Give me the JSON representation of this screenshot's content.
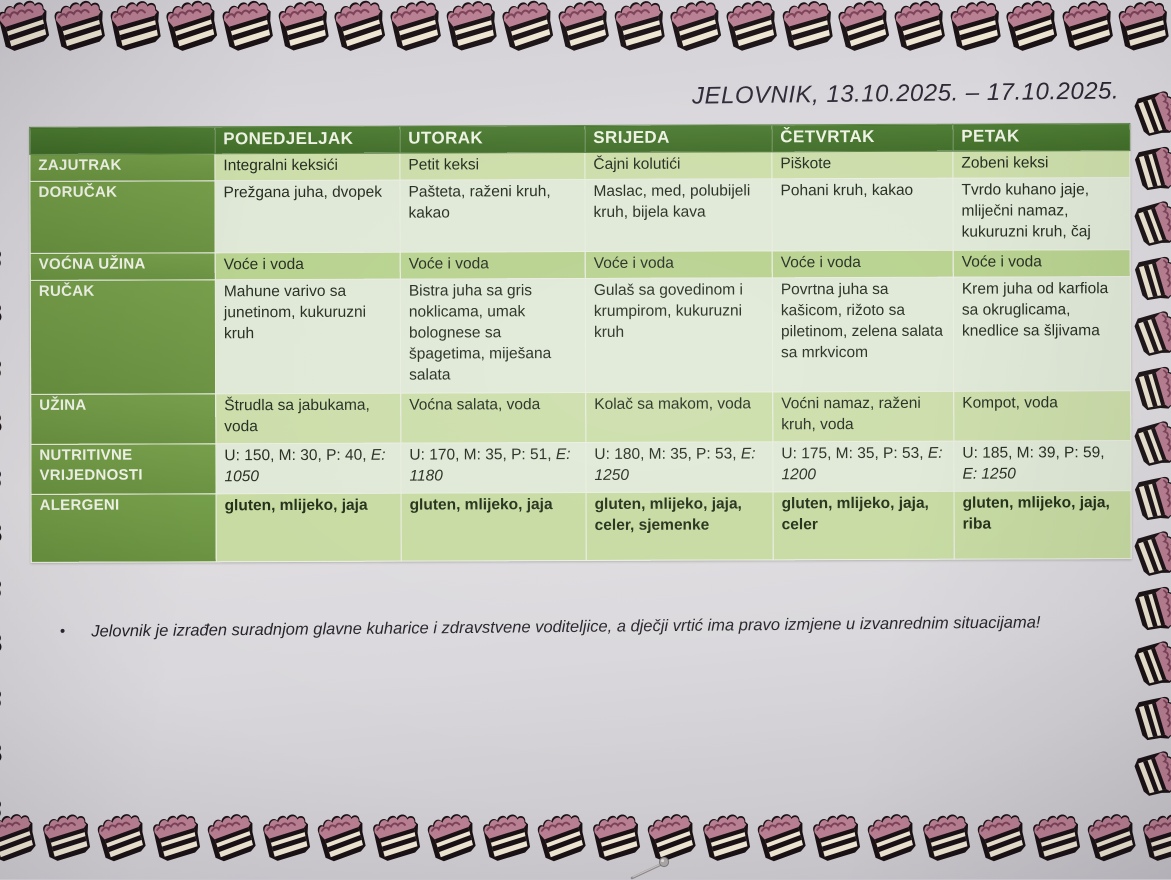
{
  "title": "JELOVNIK, 13.10.2025. – 17.10.2025.",
  "table": {
    "columns": [
      "",
      "PONEDJELJAK",
      "UTORAK",
      "SRIJEDA",
      "ČETVRTAK",
      "PETAK"
    ],
    "rows": [
      {
        "label": "ZAJUTRAK",
        "tone": "light",
        "height": "h23",
        "cells": [
          "Integralni keksići",
          "Petit keksi",
          "Čajni kolutići",
          "Piškote",
          "Zobeni keksi"
        ]
      },
      {
        "label": "DORUČAK",
        "tone": "pale",
        "height": "h68",
        "cells": [
          "Prežgana juha, dvopek",
          "Pašteta, raženi kruh, kakao",
          "Maslac, med, polubijeli kruh, bijela kava",
          "Pohani kruh, kakao",
          "Tvrdo kuhano jaje, mliječni namaz, kukuruzni kruh, čaj"
        ]
      },
      {
        "label": "VOĆNA UŽINA",
        "tone": "mid",
        "height": "h23",
        "cells": [
          "Voće i voda",
          "Voće i voda",
          "Voće i voda",
          "Voće i voda",
          "Voće i voda"
        ]
      },
      {
        "label": "RUČAK",
        "tone": "pale",
        "height": "h110",
        "cells": [
          "Mahune varivo sa junetinom, kukuruzni kruh",
          "Bistra juha sa gris noklicama, umak bolognese sa špagetima, miješana salata",
          "Gulaš sa govedinom i krumpirom, kukuruzni kruh",
          "Povrtna juha sa kašicom, rižoto sa piletinom, zelena salata sa mrkvicom",
          "Krem juha od karfiola sa okruglicama, knedlice sa šljivama"
        ]
      },
      {
        "label": "UŽINA",
        "tone": "light",
        "height": "h46",
        "cells": [
          "Štrudla sa jabukama, voda",
          "Voćna salata, voda",
          "Kolač sa makom, voda",
          "Voćni namaz, raženi kruh, voda",
          "Kompot, voda"
        ]
      },
      {
        "label": "NUTRITIVNE VRIJEDNOSTI",
        "tone": "pale",
        "height": "h46",
        "type": "nutrition",
        "nutrition": [
          {
            "U": "150",
            "M": "30",
            "P": "40",
            "E": "1050"
          },
          {
            "U": "170",
            "M": "35",
            "P": "51",
            "E": "1180"
          },
          {
            "U": "180",
            "M": "35",
            "P": "53",
            "E": "1250"
          },
          {
            "U": "175",
            "M": "35",
            "P": "53",
            "E": "1200"
          },
          {
            "U": "185",
            "M": "39",
            "P": "59",
            "E": "1250"
          }
        ]
      },
      {
        "label": "ALERGENI",
        "tone": "allerg",
        "height": "h64",
        "cells": [
          "gluten, mlijeko, jaja",
          "gluten, mlijeko, jaja",
          "gluten, mlijeko, jaja, celer, sjemenke",
          "gluten, mlijeko, jaja, celer",
          "gluten, mlijeko, jaja, riba"
        ]
      }
    ]
  },
  "note": {
    "bullet": "•",
    "text": "Jelovnik je izrađen suradnjom glavne kuharice i zdravstvene voditeljice, a dječji vrtić ima pravo izmjene u izvanrednim situacijama!"
  },
  "decor": {
    "border_icon": "cake-slice-icon",
    "pin_icon": "sewing-pin-icon"
  },
  "colors": {
    "header_green": "#3e6b27",
    "label_green": "#6d9742",
    "row_light": "#cbdda8",
    "row_pale": "#dfe8d6",
    "row_mid": "#b6d18c",
    "row_allergen": "#c6daa0",
    "paper": "#d9d6db",
    "icing_pink": "#b97f92",
    "body_text": "#20281c"
  }
}
